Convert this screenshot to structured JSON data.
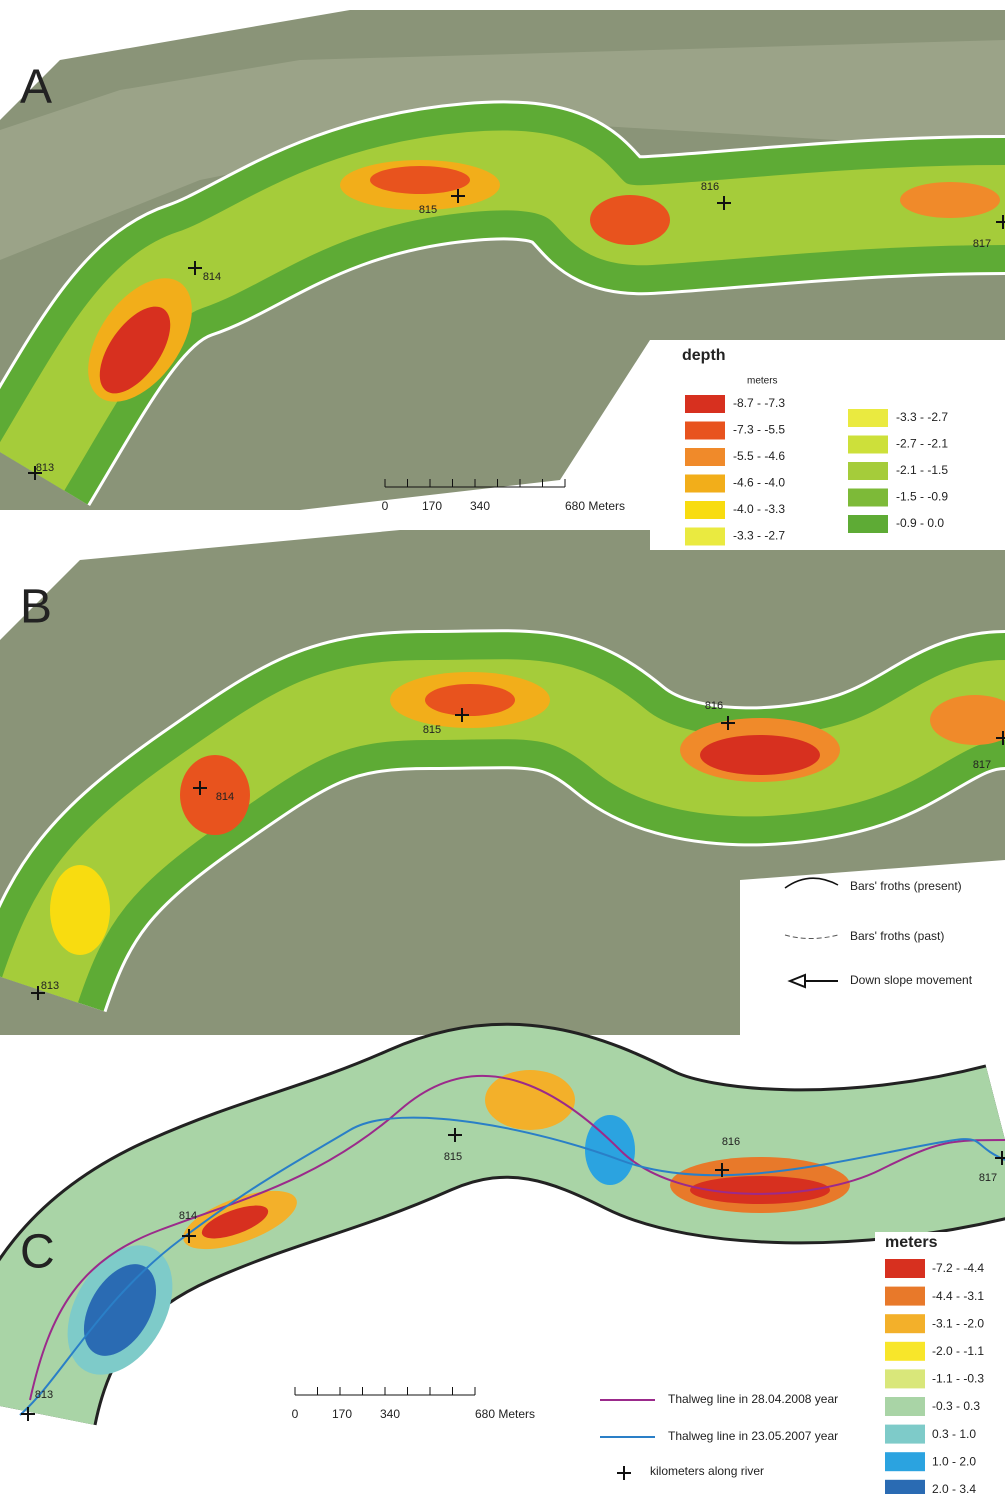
{
  "panels": [
    {
      "label": "A",
      "km_labels": [
        "813",
        "814",
        "815",
        "816",
        "817"
      ],
      "legend": {
        "title": "depth",
        "unit": "meters",
        "classes": [
          {
            "label": "-8.7 - -7.3",
            "color": "#d7301f"
          },
          {
            "label": "-7.3 - -5.5",
            "color": "#e8531e"
          },
          {
            "label": "-5.5 - -4.6",
            "color": "#f08a2a"
          },
          {
            "label": "-4.6 - -4.0",
            "color": "#f2ae1a"
          },
          {
            "label": "-4.0 - -3.3",
            "color": "#f8dc10"
          },
          {
            "label": "-3.3 - -2.7",
            "color": "#eaea40"
          },
          {
            "label": "-3.3 - -2.7",
            "color": "#eaea40"
          },
          {
            "label": "-2.7 - -2.1",
            "color": "#cde03a"
          },
          {
            "label": "-2.1 - -1.5",
            "color": "#a5cc3a"
          },
          {
            "label": "-1.5 - -0.9",
            "color": "#7dba38"
          },
          {
            "label": "-0.9 - 0.0",
            "color": "#5eab35"
          }
        ]
      },
      "scale_bar": [
        "0",
        "170",
        "340",
        "680 Meters"
      ]
    },
    {
      "label": "B",
      "km_labels": [
        "813",
        "814",
        "815",
        "816",
        "817"
      ],
      "legend_items": [
        "Bars' froths (present)",
        "Bars' froths (past)",
        "Down slope movement"
      ]
    },
    {
      "label": "C",
      "km_labels": [
        "813",
        "814",
        "815",
        "816",
        "817"
      ],
      "legend": {
        "title": "meters",
        "classes": [
          {
            "label": "-7.2 - -4.4",
            "color": "#d7301f"
          },
          {
            "label": "-4.4 - -3.1",
            "color": "#e8792a"
          },
          {
            "label": "-3.1 - -2.0",
            "color": "#f3b02a"
          },
          {
            "label": "-2.0 - -1.1",
            "color": "#f8e62a"
          },
          {
            "label": "-1.1 - -0.3",
            "color": "#d9e77a"
          },
          {
            "label": "-0.3 - 0.3",
            "color": "#a9d4a6"
          },
          {
            "label": "0.3 - 1.0",
            "color": "#7ecbc9"
          },
          {
            "label": "1.0 - 2.0",
            "color": "#2ba3e0"
          },
          {
            "label": "2.0 - 3.4",
            "color": "#2a6bb3"
          }
        ]
      },
      "scale_bar": [
        "0",
        "170",
        "340",
        "680 Meters"
      ],
      "lines": [
        {
          "name": "Thalweg line in 28.04.2008 year",
          "color": "#9b2a8b"
        },
        {
          "name": "Thalweg line in 23.05.2007 year",
          "color": "#2a7fc7"
        }
      ],
      "marker_label": "kilometers along river"
    }
  ]
}
